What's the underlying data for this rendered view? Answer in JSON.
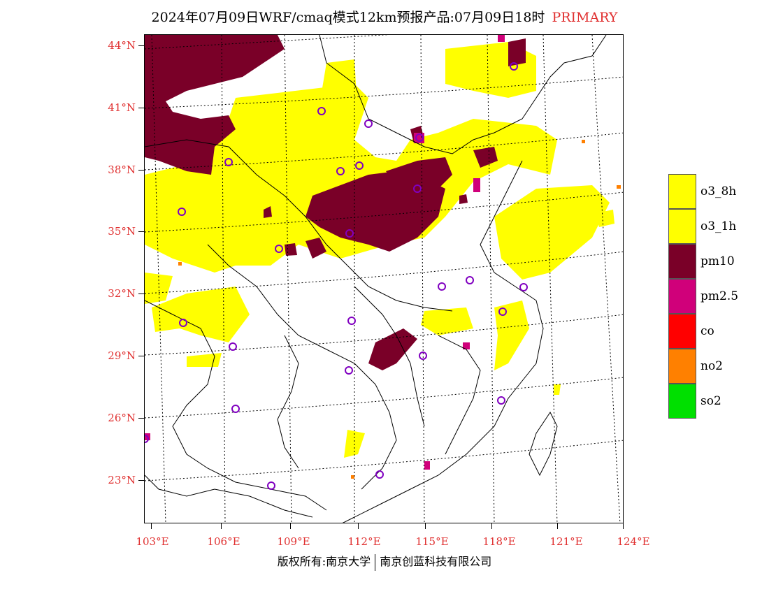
{
  "header": {
    "title": "2024年07月09日WRF/cmaq模式12km预报产品:07月09日18时",
    "primary_label": "PRIMARY"
  },
  "map": {
    "latitude_labels": [
      "44°N",
      "41°N",
      "38°N",
      "35°N",
      "32°N",
      "29°N",
      "26°N",
      "23°N"
    ],
    "longitude_labels": [
      "103°E",
      "106°E",
      "109°E",
      "112°E",
      "115°E",
      "118°E",
      "121°E",
      "124°E"
    ],
    "colors": {
      "o3_8h": "#ffff00",
      "o3_1h": "#ffff00",
      "pm10": "#7a0028",
      "pm2.5": "#d0007a",
      "co": "#ff0000",
      "no2": "#ff8000",
      "so2": "#00e000",
      "station_marker": "#8000c0",
      "label_red": "#e03030"
    }
  },
  "legend": {
    "items": [
      {
        "label": "o3_8h",
        "color": "#ffff00"
      },
      {
        "label": "o3_1h",
        "color": "#ffff00"
      },
      {
        "label": "pm10",
        "color": "#7a0028"
      },
      {
        "label": "pm2.5",
        "color": "#d0007a"
      },
      {
        "label": "co",
        "color": "#ff0000"
      },
      {
        "label": "no2",
        "color": "#ff8000"
      },
      {
        "label": "so2",
        "color": "#00e000"
      }
    ]
  },
  "footer": {
    "copyright_left": "版权所有:南京大学",
    "copyright_right": "南京创蓝科技有限公司"
  }
}
